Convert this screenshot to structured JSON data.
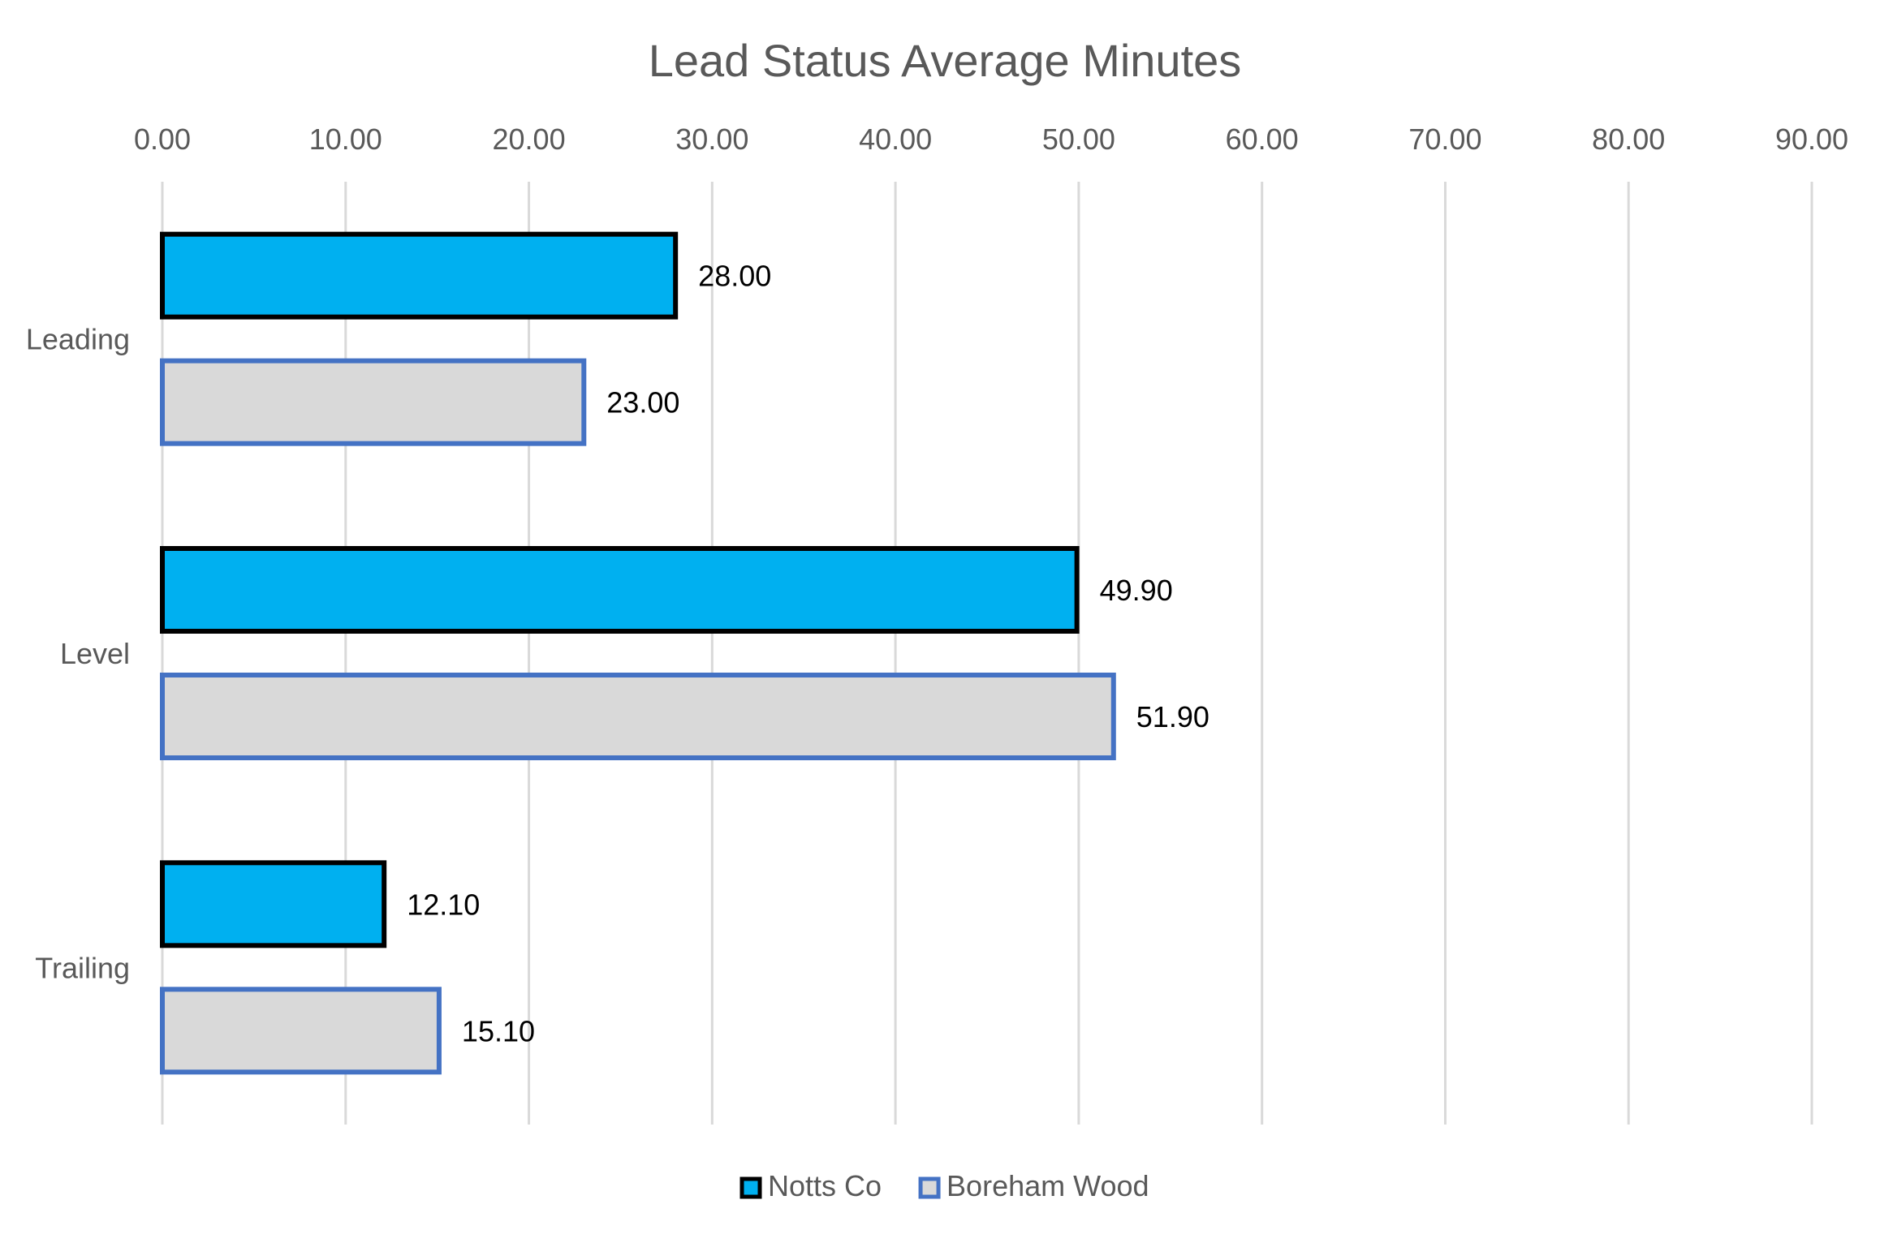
{
  "chart_data": {
    "type": "bar",
    "orientation": "horizontal",
    "title": "Lead Status Average Minutes",
    "xlabel": "",
    "ylabel": "",
    "categories": [
      "Leading",
      "Level",
      "Trailing"
    ],
    "series": [
      {
        "name": "Notts Co",
        "values": [
          28.0,
          49.9,
          12.1
        ],
        "labels": [
          "28.00",
          "49.90",
          "12.10"
        ],
        "fill": "#00B0F0",
        "stroke": "#000000"
      },
      {
        "name": "Boreham Wood",
        "values": [
          23.0,
          51.9,
          15.1
        ],
        "labels": [
          "23.00",
          "51.90",
          "15.10"
        ],
        "fill": "#D9D9D9",
        "stroke": "#4472C4"
      }
    ],
    "xlim": [
      0,
      90
    ],
    "ticks": [
      "0.00",
      "10.00",
      "20.00",
      "30.00",
      "40.00",
      "50.00",
      "60.00",
      "70.00",
      "80.00",
      "90.00"
    ],
    "tick_values": [
      0,
      10,
      20,
      30,
      40,
      50,
      60,
      70,
      80,
      90
    ],
    "axis_position": "top",
    "grid": true,
    "legend_position": "bottom"
  }
}
